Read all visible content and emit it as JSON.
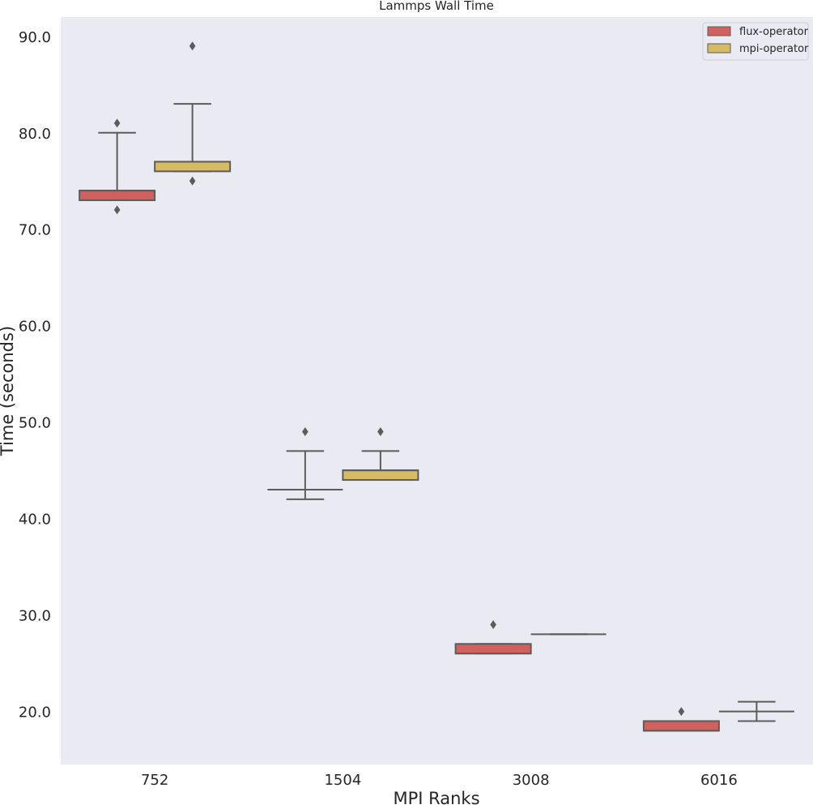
{
  "chart_data": {
    "type": "box",
    "title": "Lammps Wall Time",
    "xlabel": "MPI Ranks",
    "ylabel": "Time (seconds)",
    "categories": [
      "752",
      "1504",
      "3008",
      "6016"
    ],
    "ylim": [
      14.5,
      92
    ],
    "yticks": [
      20.0,
      30.0,
      40.0,
      50.0,
      60.0,
      70.0,
      80.0,
      90.0
    ],
    "ytick_labels": [
      "20.0",
      "30.0",
      "40.0",
      "50.0",
      "60.0",
      "70.0",
      "80.0",
      "90.0"
    ],
    "grid": false,
    "legend_position": "top-right",
    "series": [
      {
        "name": "flux-operator",
        "color": "#d1605e",
        "boxes": [
          {
            "category": "752",
            "whislo": 73,
            "q1": 73,
            "med": 74,
            "q3": 74,
            "whishi": 80,
            "fliers": [
              72,
              81
            ]
          },
          {
            "category": "1504",
            "whislo": 42,
            "q1": 43,
            "med": 43,
            "q3": 43,
            "whishi": 47,
            "fliers": [
              49
            ]
          },
          {
            "category": "3008",
            "whislo": 26,
            "q1": 26,
            "med": 26,
            "q3": 27,
            "whishi": 27,
            "fliers": [
              29
            ]
          },
          {
            "category": "6016",
            "whislo": 18,
            "q1": 18,
            "med": 18,
            "q3": 19,
            "whishi": 19,
            "fliers": [
              20
            ]
          }
        ]
      },
      {
        "name": "mpi-operator",
        "color": "#d6ba64",
        "boxes": [
          {
            "category": "752",
            "whislo": 76,
            "q1": 76,
            "med": 77,
            "q3": 77,
            "whishi": 83,
            "fliers": [
              75,
              89
            ]
          },
          {
            "category": "1504",
            "whislo": 44,
            "q1": 44,
            "med": 45,
            "q3": 45,
            "whishi": 47,
            "fliers": [
              49
            ]
          },
          {
            "category": "3008",
            "whislo": 28,
            "q1": 28,
            "med": 28,
            "q3": 28,
            "whishi": 28,
            "fliers": []
          },
          {
            "category": "6016",
            "whislo": 19,
            "q1": 20,
            "med": 20,
            "q3": 20,
            "whishi": 21,
            "fliers": []
          }
        ]
      }
    ]
  },
  "colors": {
    "plot_background": "#eaeaf2",
    "box_edge": "#5c5c5c"
  }
}
